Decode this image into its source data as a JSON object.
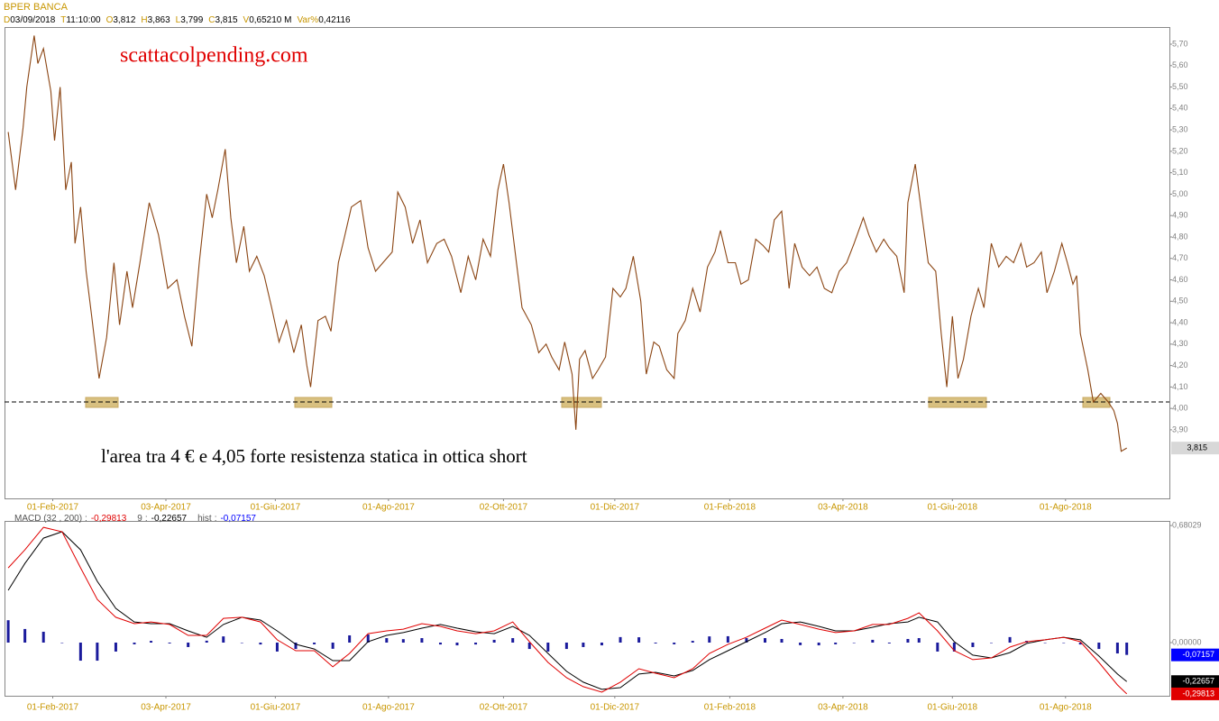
{
  "chart_data": [
    {
      "type": "line",
      "title": "BPER BANCA",
      "info": [
        {
          "key": "D",
          "value": "03/09/2018"
        },
        {
          "key": "T",
          "value": "11:10:00"
        },
        {
          "key": "O",
          "value": "3,812"
        },
        {
          "key": "H",
          "value": "3,863"
        },
        {
          "key": "L",
          "value": "3,799"
        },
        {
          "key": "C",
          "value": "3,815"
        },
        {
          "key": "V",
          "value": "0,65210 M"
        },
        {
          "key": "Var%",
          "value": "0,42116"
        }
      ],
      "watermark": "scattacolpending.com",
      "annotation": "l'area tra 4 € e 4,05 forte resistenza statica in ottica short",
      "color": "#8b4513",
      "hline": 4.03,
      "last_label": "3,815",
      "xlim": [
        "2017-01-06",
        "2018-09-26"
      ],
      "xticks": [
        {
          "value": "2017-02-01",
          "label": "01-Feb-2017"
        },
        {
          "value": "2017-04-03",
          "label": "03-Apr-2017"
        },
        {
          "value": "2017-06-01",
          "label": "01-Giu-2017"
        },
        {
          "value": "2017-08-01",
          "label": "01-Ago-2017"
        },
        {
          "value": "2017-10-02",
          "label": "02-Ott-2017"
        },
        {
          "value": "2017-12-01",
          "label": "01-Dic-2017"
        },
        {
          "value": "2018-02-01",
          "label": "01-Feb-2018"
        },
        {
          "value": "2018-04-03",
          "label": "03-Apr-2018"
        },
        {
          "value": "2018-06-01",
          "label": "01-Giu-2018"
        },
        {
          "value": "2018-08-01",
          "label": "01-Ago-2018"
        }
      ],
      "ylim": [
        3.58,
        5.78
      ],
      "yticks": [
        {
          "value": 3.9,
          "label": "3,90"
        },
        {
          "value": 4.0,
          "label": "4,00"
        },
        {
          "value": 4.1,
          "label": "4,10"
        },
        {
          "value": 4.2,
          "label": "4,20"
        },
        {
          "value": 4.3,
          "label": "4,30"
        },
        {
          "value": 4.4,
          "label": "4,40"
        },
        {
          "value": 4.5,
          "label": "4,50"
        },
        {
          "value": 4.6,
          "label": "4,60"
        },
        {
          "value": 4.7,
          "label": "4,70"
        },
        {
          "value": 4.8,
          "label": "4,80"
        },
        {
          "value": 4.9,
          "label": "4,90"
        },
        {
          "value": 5.0,
          "label": "5,00"
        },
        {
          "value": 5.1,
          "label": "5,10"
        },
        {
          "value": 5.2,
          "label": "5,20"
        },
        {
          "value": 5.3,
          "label": "5,30"
        },
        {
          "value": 5.4,
          "label": "5,40"
        },
        {
          "value": 5.5,
          "label": "5,50"
        },
        {
          "value": 5.6,
          "label": "5,60"
        },
        {
          "value": 5.7,
          "label": "5,70"
        }
      ],
      "x": [
        "2017-01-08",
        "2017-01-12",
        "2017-01-16",
        "2017-01-18",
        "2017-01-22",
        "2017-01-24",
        "2017-01-27",
        "2017-01-31",
        "2017-02-02",
        "2017-02-05",
        "2017-02-08",
        "2017-02-11",
        "2017-02-13",
        "2017-02-16",
        "2017-02-19",
        "2017-02-22",
        "2017-02-26",
        "2017-03-02",
        "2017-03-06",
        "2017-03-09",
        "2017-03-13",
        "2017-03-16",
        "2017-03-20",
        "2017-03-25",
        "2017-03-30",
        "2017-04-04",
        "2017-04-09",
        "2017-04-13",
        "2017-04-17",
        "2017-04-21",
        "2017-04-25",
        "2017-04-28",
        "2017-05-01",
        "2017-05-05",
        "2017-05-08",
        "2017-05-11",
        "2017-05-15",
        "2017-05-18",
        "2017-05-22",
        "2017-05-26",
        "2017-05-30",
        "2017-06-03",
        "2017-06-07",
        "2017-06-11",
        "2017-06-15",
        "2017-06-18",
        "2017-06-20",
        "2017-06-24",
        "2017-06-28",
        "2017-07-01",
        "2017-07-05",
        "2017-07-08",
        "2017-07-12",
        "2017-07-17",
        "2017-07-21",
        "2017-07-25",
        "2017-07-29",
        "2017-08-03",
        "2017-08-06",
        "2017-08-10",
        "2017-08-14",
        "2017-08-18",
        "2017-08-22",
        "2017-08-27",
        "2017-08-31",
        "2017-09-04",
        "2017-09-09",
        "2017-09-13",
        "2017-09-17",
        "2017-09-21",
        "2017-09-25",
        "2017-09-29",
        "2017-10-02",
        "2017-10-05",
        "2017-10-09",
        "2017-10-12",
        "2017-10-17",
        "2017-10-21",
        "2017-10-25",
        "2017-10-28",
        "2017-11-01",
        "2017-11-04",
        "2017-11-08",
        "2017-11-10",
        "2017-11-12",
        "2017-11-15",
        "2017-11-19",
        "2017-11-22",
        "2017-11-26",
        "2017-11-30",
        "2017-12-04",
        "2017-12-07",
        "2017-12-11",
        "2017-12-15",
        "2017-12-18",
        "2017-12-22",
        "2017-12-25",
        "2017-12-29",
        "2018-01-02",
        "2018-01-04",
        "2018-01-08",
        "2018-01-12",
        "2018-01-16",
        "2018-01-20",
        "2018-01-24",
        "2018-01-27",
        "2018-01-31",
        "2018-02-04",
        "2018-02-07",
        "2018-02-11",
        "2018-02-15",
        "2018-02-19",
        "2018-02-22",
        "2018-02-25",
        "2018-03-01",
        "2018-03-05",
        "2018-03-08",
        "2018-03-12",
        "2018-03-16",
        "2018-03-20",
        "2018-03-24",
        "2018-03-28",
        "2018-04-01",
        "2018-04-05",
        "2018-04-09",
        "2018-04-14",
        "2018-04-17",
        "2018-04-21",
        "2018-04-25",
        "2018-04-28",
        "2018-05-02",
        "2018-05-06",
        "2018-05-08",
        "2018-05-12",
        "2018-05-15",
        "2018-05-19",
        "2018-05-23",
        "2018-05-26",
        "2018-05-29",
        "2018-06-01",
        "2018-06-04",
        "2018-06-07",
        "2018-06-11",
        "2018-06-15",
        "2018-06-18",
        "2018-06-22",
        "2018-06-26",
        "2018-06-30",
        "2018-07-04",
        "2018-07-08",
        "2018-07-11",
        "2018-07-15",
        "2018-07-19",
        "2018-07-22",
        "2018-07-26",
        "2018-07-30",
        "2018-08-02",
        "2018-08-05",
        "2018-08-07",
        "2018-08-09",
        "2018-08-13",
        "2018-08-16",
        "2018-08-20",
        "2018-08-24",
        "2018-08-27",
        "2018-08-29",
        "2018-08-31",
        "2018-09-03"
      ],
      "values": [
        5.29,
        5.02,
        5.31,
        5.5,
        5.74,
        5.61,
        5.68,
        5.48,
        5.25,
        5.5,
        5.02,
        5.15,
        4.77,
        4.94,
        4.64,
        4.43,
        4.14,
        4.33,
        4.68,
        4.39,
        4.64,
        4.47,
        4.68,
        4.96,
        4.81,
        4.56,
        4.6,
        4.43,
        4.29,
        4.68,
        5.0,
        4.89,
        5.02,
        5.21,
        4.89,
        4.68,
        4.85,
        4.64,
        4.71,
        4.62,
        4.47,
        4.31,
        4.41,
        4.26,
        4.39,
        4.2,
        4.1,
        4.41,
        4.43,
        4.36,
        4.68,
        4.79,
        4.94,
        4.97,
        4.75,
        4.64,
        4.68,
        4.73,
        5.01,
        4.94,
        4.77,
        4.88,
        4.68,
        4.77,
        4.79,
        4.71,
        4.54,
        4.71,
        4.6,
        4.79,
        4.71,
        5.02,
        5.14,
        4.96,
        4.68,
        4.47,
        4.39,
        4.26,
        4.3,
        4.24,
        4.18,
        4.31,
        4.16,
        3.9,
        4.23,
        4.27,
        4.14,
        4.18,
        4.24,
        4.56,
        4.52,
        4.56,
        4.71,
        4.5,
        4.16,
        4.31,
        4.29,
        4.18,
        4.14,
        4.35,
        4.41,
        4.56,
        4.45,
        4.66,
        4.73,
        4.83,
        4.68,
        4.68,
        4.58,
        4.6,
        4.79,
        4.76,
        4.73,
        4.88,
        4.92,
        4.56,
        4.77,
        4.66,
        4.62,
        4.66,
        4.56,
        4.54,
        4.64,
        4.68,
        4.77,
        4.89,
        4.81,
        4.73,
        4.79,
        4.75,
        4.71,
        4.54,
        4.96,
        5.14,
        4.94,
        4.68,
        4.64,
        4.35,
        4.1,
        4.43,
        4.14,
        4.23,
        4.43,
        4.56,
        4.47,
        4.77,
        4.66,
        4.71,
        4.68,
        4.77,
        4.66,
        4.68,
        4.73,
        4.54,
        4.64,
        4.77,
        4.68,
        4.58,
        4.62,
        4.35,
        4.18,
        4.03,
        4.07,
        4.03,
        3.99,
        3.93,
        3.8,
        3.815
      ]
    },
    {
      "type": "combo",
      "xlim": [
        "2017-01-06",
        "2018-09-26"
      ],
      "ylim": [
        -0.309,
        0.707
      ],
      "yticks": [
        {
          "value": 0,
          "label": "0,00000"
        },
        {
          "value": 0.68029,
          "label": "0,68029"
        }
      ],
      "x": [
        "2017-01-08",
        "2017-01-17",
        "2017-01-27",
        "2017-02-06",
        "2017-02-16",
        "2017-02-25",
        "2017-03-07",
        "2017-03-17",
        "2017-03-26",
        "2017-04-05",
        "2017-04-15",
        "2017-04-25",
        "2017-05-04",
        "2017-05-14",
        "2017-05-24",
        "2017-06-02",
        "2017-06-12",
        "2017-06-22",
        "2017-07-02",
        "2017-07-11",
        "2017-07-21",
        "2017-07-31",
        "2017-08-09",
        "2017-08-19",
        "2017-08-29",
        "2017-09-07",
        "2017-09-17",
        "2017-09-27",
        "2017-10-07",
        "2017-10-16",
        "2017-10-26",
        "2017-11-05",
        "2017-11-14",
        "2017-11-24",
        "2017-12-04",
        "2017-12-14",
        "2017-12-23",
        "2018-01-02",
        "2018-01-12",
        "2018-01-21",
        "2018-01-31",
        "2018-02-10",
        "2018-02-20",
        "2018-03-01",
        "2018-03-11",
        "2018-03-21",
        "2018-03-30",
        "2018-04-09",
        "2018-04-19",
        "2018-04-28",
        "2018-05-08",
        "2018-05-14",
        "2018-05-24",
        "2018-06-02",
        "2018-06-12",
        "2018-06-22",
        "2018-07-02",
        "2018-07-11",
        "2018-07-21",
        "2018-07-31",
        "2018-08-09",
        "2018-08-19",
        "2018-08-29",
        "2018-09-03"
      ],
      "series": [
        {
          "name": "hist",
          "type": "bar",
          "color": "#1a1a9c",
          "box_color": "#0000ff",
          "label_value": "-0,07157",
          "values": [
            0.13,
            0.079,
            0.063,
            0.0,
            -0.105,
            -0.105,
            -0.052,
            -0.01,
            0.01,
            -0.005,
            -0.026,
            0.011,
            0.036,
            0.0,
            -0.011,
            -0.052,
            -0.037,
            -0.01,
            -0.036,
            0.042,
            0.047,
            0.026,
            0.02,
            0.026,
            -0.011,
            -0.016,
            -0.011,
            0.016,
            0.026,
            -0.037,
            -0.052,
            -0.037,
            -0.026,
            -0.016,
            0.032,
            0.031,
            -0.005,
            -0.01,
            0.01,
            0.036,
            0.037,
            0.026,
            0.026,
            0.021,
            -0.015,
            -0.016,
            -0.01,
            0.0,
            0.016,
            -0.005,
            0.021,
            0.026,
            -0.052,
            -0.052,
            -0.026,
            0.0,
            0.032,
            0.01,
            0.0,
            0.0,
            -0.011,
            -0.037,
            -0.063,
            -0.07157
          ]
        },
        {
          "name": "9",
          "type": "line",
          "color": "#000000",
          "box_color": "#000000",
          "label_value": "-0,22657",
          "values": [
            0.304,
            0.46,
            0.607,
            0.644,
            0.539,
            0.356,
            0.199,
            0.12,
            0.11,
            0.11,
            0.068,
            0.031,
            0.105,
            0.147,
            0.131,
            0.068,
            -0.01,
            -0.037,
            -0.105,
            -0.105,
            0.005,
            0.042,
            0.058,
            0.084,
            0.105,
            0.084,
            0.063,
            0.052,
            0.094,
            0.042,
            -0.063,
            -0.167,
            -0.23,
            -0.272,
            -0.262,
            -0.183,
            -0.173,
            -0.194,
            -0.162,
            -0.099,
            -0.047,
            0.005,
            0.058,
            0.11,
            0.12,
            0.094,
            0.068,
            0.068,
            0.089,
            0.11,
            0.12,
            0.147,
            0.12,
            0.005,
            -0.073,
            -0.089,
            -0.058,
            -0.005,
            0.016,
            0.031,
            0.016,
            -0.078,
            -0.183,
            -0.22657
          ]
        },
        {
          "name": "MACD   (32 , 200)",
          "type": "line",
          "color": "#e00000",
          "box_color": "#e00000",
          "label_value": "-0,29813",
          "values": [
            0.434,
            0.539,
            0.67,
            0.644,
            0.434,
            0.251,
            0.147,
            0.11,
            0.12,
            0.105,
            0.042,
            0.042,
            0.141,
            0.147,
            0.12,
            0.016,
            -0.047,
            -0.047,
            -0.141,
            -0.063,
            0.052,
            0.068,
            0.078,
            0.11,
            0.094,
            0.068,
            0.052,
            0.068,
            0.12,
            0.005,
            -0.115,
            -0.204,
            -0.256,
            -0.288,
            -0.23,
            -0.152,
            -0.178,
            -0.204,
            -0.152,
            -0.063,
            -0.01,
            0.031,
            0.084,
            0.131,
            0.105,
            0.078,
            0.058,
            0.068,
            0.105,
            0.105,
            0.141,
            0.173,
            0.068,
            -0.047,
            -0.099,
            -0.089,
            -0.026,
            0.005,
            0.016,
            0.031,
            0.005,
            -0.115,
            -0.246,
            -0.29813
          ]
        }
      ]
    }
  ]
}
